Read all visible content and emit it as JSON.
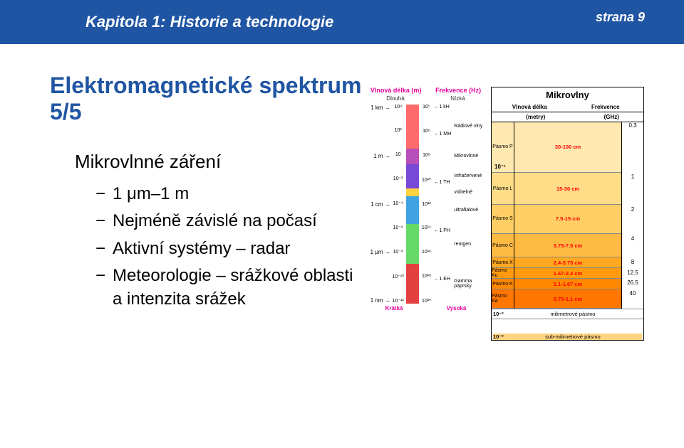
{
  "header": {
    "chapter": "Kapitola 1: Historie a technologie",
    "page": "strana 9"
  },
  "title": "Elektromagnetické spektrum 5/5",
  "topic": "Mikrovlnné záření",
  "bullets": [
    "1 μm–1 m",
    "Nejméně závislé na počasí",
    "Aktivní systémy – radar",
    "Meteorologie – srážkové oblasti a intenzita srážek"
  ],
  "spectrum": {
    "head_left": "Vlnová délka (m)",
    "head_right": "Frekvence (Hz)",
    "sub_left": "Dlouhá",
    "sub_right": "Nízká",
    "foot_left": "Krátká",
    "foot_right": "Vysoká",
    "left_ticks": [
      "1 km →",
      "1 m →",
      "1 cm →",
      "1 μm →",
      "1 nm →"
    ],
    "mid_ticks": [
      "10⁴",
      "10²",
      "10",
      "10⁻²",
      "10⁻⁴",
      "10⁻⁶",
      "10⁻⁸",
      "10⁻¹⁰",
      "10⁻¹²"
    ],
    "right_ticks": [
      "←1 kH",
      "←1 MH",
      "",
      "←1 TH",
      "",
      "←1 PH",
      "",
      "←1 EH",
      ""
    ],
    "freq_ticks": [
      "10⁵",
      "10⁶",
      "10⁸",
      "10¹⁰",
      "10¹²",
      "10¹⁴",
      "10¹⁶",
      "10¹⁸",
      "10²⁰"
    ],
    "bar": [
      {
        "h": 22,
        "color": "#ff6b6b",
        "label": "Rádiové vlny"
      },
      {
        "h": 8,
        "color": "#b84eb8",
        "label": "Mikrovlnné"
      },
      {
        "h": 12,
        "color": "#7849d6",
        "label": "Infračervené"
      },
      {
        "h": 4,
        "color": "#ffd23f",
        "label": "viditelné"
      },
      {
        "h": 14,
        "color": "#3ea3e0",
        "label": "ultrafialové"
      },
      {
        "h": 20,
        "color": "#66d966",
        "label": "rentgen"
      },
      {
        "h": 20,
        "color": "#e34040",
        "label": "Gamma paprsky"
      }
    ]
  },
  "micro": {
    "title": "Mikrovlny",
    "head_wl": "Vlnová délka",
    "head_wl_u": "(metry)",
    "head_fr": "Frekvence",
    "head_fr_u": "(GHz)",
    "freq_ticks": [
      "0.3",
      "1",
      "2",
      "4",
      "8",
      "12.5",
      "26.5",
      "40"
    ],
    "bands": [
      {
        "name": "Pásmo P",
        "wl": "30-100 cm",
        "h": 60,
        "c": "#ffe9b0"
      },
      {
        "name": "Pásmo L",
        "wl": "15-30 cm",
        "h": 38,
        "c": "#ffdd88"
      },
      {
        "name": "Pásmo S",
        "wl": "7.5-15 cm",
        "h": 34,
        "c": "#ffcf66"
      },
      {
        "name": "Pásmo C",
        "wl": "3.75-7.5 cm",
        "h": 28,
        "c": "#ffba44"
      },
      {
        "name": "Pásmo X",
        "wl": "2.4-3.75 cm",
        "h": 12,
        "c": "#ffa822"
      },
      {
        "name": "Pásmo Ku",
        "wl": "1.67-2.4 cm",
        "h": 12,
        "c": "#ff9a11"
      },
      {
        "name": "Pásmo K",
        "wl": "1.1-1.67 cm",
        "h": 12,
        "c": "#ff8800"
      },
      {
        "name": "Pásmo Ka",
        "wl": "0.75-1.1 cm",
        "h": 22,
        "c": "#ff7700"
      }
    ],
    "mm": "milimetrové pásmo",
    "scale10_1": "10⁻¹",
    "scale10_2": "10⁻²",
    "scale10_3": "10⁻³",
    "sub_mm": "sub-milimetrové pásmo"
  }
}
